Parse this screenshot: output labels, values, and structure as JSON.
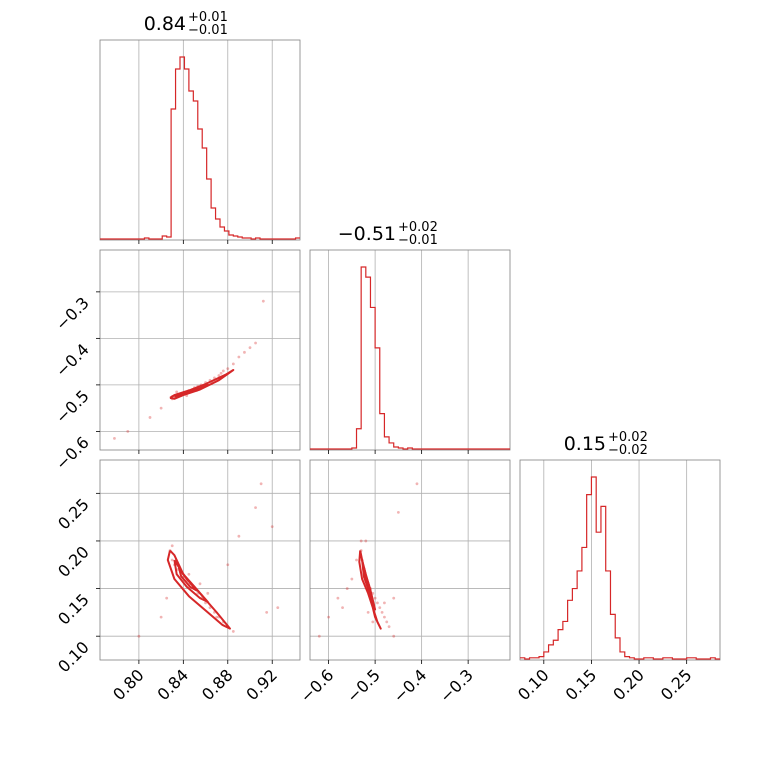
{
  "chart_data": {
    "type": "corner",
    "color": "#d62728",
    "titles": [
      {
        "value": "0.84",
        "plus": "+0.01",
        "minus": "−0.01"
      },
      {
        "value": "−0.51",
        "plus": "+0.02",
        "minus": "−0.01"
      },
      {
        "value": "0.15",
        "plus": "+0.02",
        "minus": "−0.02"
      }
    ],
    "axes": [
      {
        "range": [
          0.765,
          0.945
        ],
        "ticks": [
          0.8,
          0.84,
          0.88,
          0.92
        ],
        "tick_labels": [
          "0.80",
          "0.84",
          "0.88",
          "0.92"
        ]
      },
      {
        "range": [
          -0.64,
          -0.21
        ],
        "ticks": [
          -0.6,
          -0.5,
          -0.4,
          -0.3
        ],
        "tick_labels": [
          "−0.6",
          "−0.5",
          "−0.4",
          "−0.3"
        ]
      },
      {
        "range": [
          0.075,
          0.285
        ],
        "ticks": [
          0.1,
          0.15,
          0.2,
          0.25
        ],
        "tick_labels": [
          "0.10",
          "0.15",
          "0.20",
          "0.25"
        ]
      }
    ],
    "histograms": [
      {
        "bin_edges": [
          0.765,
          0.769,
          0.773,
          0.777,
          0.781,
          0.785,
          0.789,
          0.793,
          0.797,
          0.801,
          0.805,
          0.809,
          0.813,
          0.817,
          0.821,
          0.825,
          0.829,
          0.833,
          0.837,
          0.841,
          0.845,
          0.849,
          0.853,
          0.857,
          0.861,
          0.865,
          0.869,
          0.873,
          0.877,
          0.881,
          0.885,
          0.889,
          0.893,
          0.897,
          0.901,
          0.905,
          0.909,
          0.913,
          0.917,
          0.921,
          0.925,
          0.929,
          0.933,
          0.937,
          0.941,
          0.945
        ],
        "counts": [
          0,
          0,
          0,
          0,
          0,
          0,
          0,
          0,
          0,
          0,
          1,
          0,
          0,
          0,
          3,
          2,
          130,
          170,
          182,
          170,
          148,
          138,
          110,
          91,
          60,
          31,
          20,
          12,
          8,
          4,
          3,
          2,
          1,
          1,
          0,
          1,
          0,
          0,
          0,
          0,
          0,
          0,
          0,
          0,
          1
        ]
      },
      {
        "bin_edges": [
          -0.64,
          -0.63,
          -0.62,
          -0.61,
          -0.6,
          -0.59,
          -0.58,
          -0.57,
          -0.56,
          -0.55,
          -0.54,
          -0.53,
          -0.52,
          -0.51,
          -0.5,
          -0.49,
          -0.48,
          -0.47,
          -0.46,
          -0.45,
          -0.44,
          -0.43,
          -0.42,
          -0.41,
          -0.4,
          -0.39,
          -0.38,
          -0.37,
          -0.36,
          -0.35,
          -0.34,
          -0.33,
          -0.32,
          -0.31,
          -0.3,
          -0.29,
          -0.28,
          -0.27,
          -0.26,
          -0.25,
          -0.24,
          -0.23,
          -0.22,
          -0.21
        ],
        "counts": [
          0,
          0,
          0,
          0,
          0,
          0,
          0,
          0,
          0,
          1,
          20,
          180,
          170,
          140,
          100,
          35,
          12,
          6,
          2,
          1,
          0,
          1,
          0,
          0,
          0,
          0,
          0,
          0,
          0,
          0,
          0,
          0,
          0,
          0,
          0,
          0,
          0,
          0,
          0,
          0,
          0,
          0,
          0
        ]
      },
      {
        "bin_edges": [
          0.075,
          0.08,
          0.085,
          0.09,
          0.095,
          0.1,
          0.105,
          0.11,
          0.115,
          0.12,
          0.125,
          0.13,
          0.135,
          0.14,
          0.145,
          0.15,
          0.155,
          0.16,
          0.165,
          0.17,
          0.175,
          0.18,
          0.185,
          0.19,
          0.195,
          0.2,
          0.205,
          0.21,
          0.215,
          0.22,
          0.225,
          0.23,
          0.235,
          0.24,
          0.245,
          0.25,
          0.255,
          0.26,
          0.265,
          0.27,
          0.275,
          0.28,
          0.285
        ],
        "counts": [
          1,
          0,
          1,
          1,
          2,
          6,
          12,
          16,
          25,
          32,
          50,
          60,
          75,
          95,
          140,
          155,
          108,
          130,
          75,
          38,
          18,
          6,
          2,
          1,
          0,
          0,
          1,
          1,
          0,
          0,
          1,
          1,
          0,
          0,
          0,
          1,
          1,
          0,
          0,
          0,
          1,
          0
        ]
      }
    ],
    "scatter_pairs": [
      {
        "x_axis": 0,
        "y_axis": 1,
        "points": [
          [
            0.83,
            -0.525
          ],
          [
            0.832,
            -0.527
          ],
          [
            0.835,
            -0.522
          ],
          [
            0.838,
            -0.52
          ],
          [
            0.84,
            -0.518
          ],
          [
            0.842,
            -0.515
          ],
          [
            0.845,
            -0.512
          ],
          [
            0.848,
            -0.51
          ],
          [
            0.85,
            -0.506
          ],
          [
            0.853,
            -0.503
          ],
          [
            0.856,
            -0.5
          ],
          [
            0.86,
            -0.495
          ],
          [
            0.864,
            -0.49
          ],
          [
            0.868,
            -0.485
          ],
          [
            0.872,
            -0.48
          ],
          [
            0.876,
            -0.47
          ],
          [
            0.88,
            -0.465
          ],
          [
            0.885,
            -0.455
          ],
          [
            0.89,
            -0.44
          ],
          [
            0.895,
            -0.43
          ],
          [
            0.9,
            -0.42
          ],
          [
            0.905,
            -0.41
          ],
          [
            0.912,
            -0.32
          ],
          [
            0.83,
            -0.53
          ],
          [
            0.834,
            -0.515
          ],
          [
            0.843,
            -0.523
          ],
          [
            0.852,
            -0.512
          ],
          [
            0.866,
            -0.496
          ],
          [
            0.874,
            -0.475
          ],
          [
            0.79,
            -0.6
          ],
          [
            0.778,
            -0.615
          ],
          [
            0.81,
            -0.57
          ],
          [
            0.82,
            -0.55
          ]
        ],
        "contours": [
          [
            [
              0.828,
              -0.528
            ],
            [
              0.832,
              -0.53
            ],
            [
              0.84,
              -0.522
            ],
            [
              0.855,
              -0.51
            ],
            [
              0.872,
              -0.49
            ],
            [
              0.885,
              -0.468
            ],
            [
              0.878,
              -0.478
            ],
            [
              0.86,
              -0.498
            ],
            [
              0.845,
              -0.512
            ],
            [
              0.832,
              -0.522
            ],
            [
              0.828,
              -0.528
            ]
          ],
          [
            [
              0.832,
              -0.525
            ],
            [
              0.842,
              -0.519
            ],
            [
              0.852,
              -0.51
            ],
            [
              0.862,
              -0.5
            ],
            [
              0.855,
              -0.507
            ],
            [
              0.844,
              -0.515
            ],
            [
              0.835,
              -0.522
            ],
            [
              0.832,
              -0.525
            ]
          ],
          [
            [
              0.836,
              -0.522
            ],
            [
              0.845,
              -0.516
            ],
            [
              0.852,
              -0.51
            ],
            [
              0.846,
              -0.514
            ],
            [
              0.838,
              -0.52
            ],
            [
              0.836,
              -0.522
            ]
          ]
        ]
      },
      {
        "x_axis": 0,
        "y_axis": 2,
        "points": [
          [
            0.83,
            0.18
          ],
          [
            0.832,
            0.175
          ],
          [
            0.835,
            0.17
          ],
          [
            0.838,
            0.165
          ],
          [
            0.84,
            0.162
          ],
          [
            0.843,
            0.158
          ],
          [
            0.846,
            0.155
          ],
          [
            0.85,
            0.15
          ],
          [
            0.853,
            0.145
          ],
          [
            0.856,
            0.14
          ],
          [
            0.86,
            0.135
          ],
          [
            0.864,
            0.13
          ],
          [
            0.868,
            0.125
          ],
          [
            0.872,
            0.12
          ],
          [
            0.876,
            0.115
          ],
          [
            0.88,
            0.11
          ],
          [
            0.885,
            0.105
          ],
          [
            0.905,
            0.235
          ],
          [
            0.91,
            0.26
          ],
          [
            0.92,
            0.215
          ],
          [
            0.915,
            0.125
          ],
          [
            0.925,
            0.13
          ],
          [
            0.8,
            0.1
          ],
          [
            0.82,
            0.12
          ],
          [
            0.825,
            0.14
          ],
          [
            0.828,
            0.19
          ],
          [
            0.83,
            0.195
          ],
          [
            0.845,
            0.165
          ],
          [
            0.855,
            0.155
          ],
          [
            0.862,
            0.145
          ],
          [
            0.89,
            0.205
          ],
          [
            0.87,
            0.12
          ],
          [
            0.88,
            0.175
          ]
        ],
        "contours": [
          [
            [
              0.828,
              0.19
            ],
            [
              0.832,
              0.185
            ],
            [
              0.84,
              0.165
            ],
            [
              0.855,
              0.145
            ],
            [
              0.87,
              0.125
            ],
            [
              0.882,
              0.108
            ],
            [
              0.875,
              0.112
            ],
            [
              0.86,
              0.127
            ],
            [
              0.845,
              0.142
            ],
            [
              0.832,
              0.16
            ],
            [
              0.826,
              0.18
            ],
            [
              0.828,
              0.19
            ]
          ],
          [
            [
              0.832,
              0.18
            ],
            [
              0.84,
              0.165
            ],
            [
              0.85,
              0.152
            ],
            [
              0.862,
              0.136
            ],
            [
              0.855,
              0.14
            ],
            [
              0.843,
              0.152
            ],
            [
              0.834,
              0.165
            ],
            [
              0.832,
              0.18
            ]
          ],
          [
            [
              0.836,
              0.172
            ],
            [
              0.843,
              0.16
            ],
            [
              0.852,
              0.148
            ],
            [
              0.846,
              0.152
            ],
            [
              0.838,
              0.163
            ],
            [
              0.836,
              0.172
            ]
          ]
        ]
      },
      {
        "x_axis": 1,
        "y_axis": 2,
        "points": [
          [
            -0.53,
            0.19
          ],
          [
            -0.528,
            0.18
          ],
          [
            -0.525,
            0.17
          ],
          [
            -0.522,
            0.165
          ],
          [
            -0.52,
            0.16
          ],
          [
            -0.515,
            0.155
          ],
          [
            -0.51,
            0.15
          ],
          [
            -0.505,
            0.145
          ],
          [
            -0.5,
            0.14
          ],
          [
            -0.495,
            0.135
          ],
          [
            -0.49,
            0.13
          ],
          [
            -0.485,
            0.125
          ],
          [
            -0.48,
            0.12
          ],
          [
            -0.475,
            0.115
          ],
          [
            -0.47,
            0.11
          ],
          [
            -0.46,
            0.1
          ],
          [
            -0.41,
            0.26
          ],
          [
            -0.45,
            0.23
          ],
          [
            -0.53,
            0.2
          ],
          [
            -0.54,
            0.18
          ],
          [
            -0.55,
            0.16
          ],
          [
            -0.56,
            0.15
          ],
          [
            -0.57,
            0.13
          ],
          [
            -0.58,
            0.14
          ],
          [
            -0.6,
            0.12
          ],
          [
            -0.62,
            0.1
          ],
          [
            -0.515,
            0.125
          ],
          [
            -0.505,
            0.115
          ],
          [
            -0.48,
            0.135
          ],
          [
            -0.46,
            0.14
          ],
          [
            -0.52,
            0.2
          ]
        ],
        "contours": [
          [
            [
              -0.532,
              0.19
            ],
            [
              -0.528,
              0.18
            ],
            [
              -0.522,
              0.165
            ],
            [
              -0.51,
              0.14
            ],
            [
              -0.5,
              0.12
            ],
            [
              -0.488,
              0.108
            ],
            [
              -0.495,
              0.115
            ],
            [
              -0.505,
              0.13
            ],
            [
              -0.515,
              0.145
            ],
            [
              -0.528,
              0.16
            ],
            [
              -0.534,
              0.178
            ],
            [
              -0.532,
              0.19
            ]
          ],
          [
            [
              -0.528,
              0.18
            ],
            [
              -0.52,
              0.165
            ],
            [
              -0.51,
              0.148
            ],
            [
              -0.5,
              0.128
            ],
            [
              -0.506,
              0.135
            ],
            [
              -0.515,
              0.15
            ],
            [
              -0.524,
              0.162
            ],
            [
              -0.528,
              0.18
            ]
          ],
          [
            [
              -0.524,
              0.172
            ],
            [
              -0.518,
              0.16
            ],
            [
              -0.51,
              0.148
            ],
            [
              -0.514,
              0.155
            ],
            [
              -0.521,
              0.165
            ],
            [
              -0.524,
              0.172
            ]
          ]
        ]
      }
    ]
  }
}
